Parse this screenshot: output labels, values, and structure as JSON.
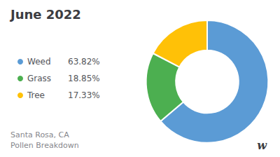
{
  "chart_data": {
    "type": "donut",
    "title": "June 2022",
    "subtitle": "Santa Rosa, CA\nPollen Breakdown",
    "categories": [
      "Weed",
      "Grass",
      "Tree"
    ],
    "values": [
      63.82,
      18.85,
      17.33
    ],
    "value_labels": [
      "63.82%",
      "18.85%",
      "17.33%"
    ],
    "colors": [
      "#5B9BD5",
      "#4CAF50",
      "#FFC107"
    ],
    "legend": "left",
    "annotations": [
      "w"
    ]
  }
}
